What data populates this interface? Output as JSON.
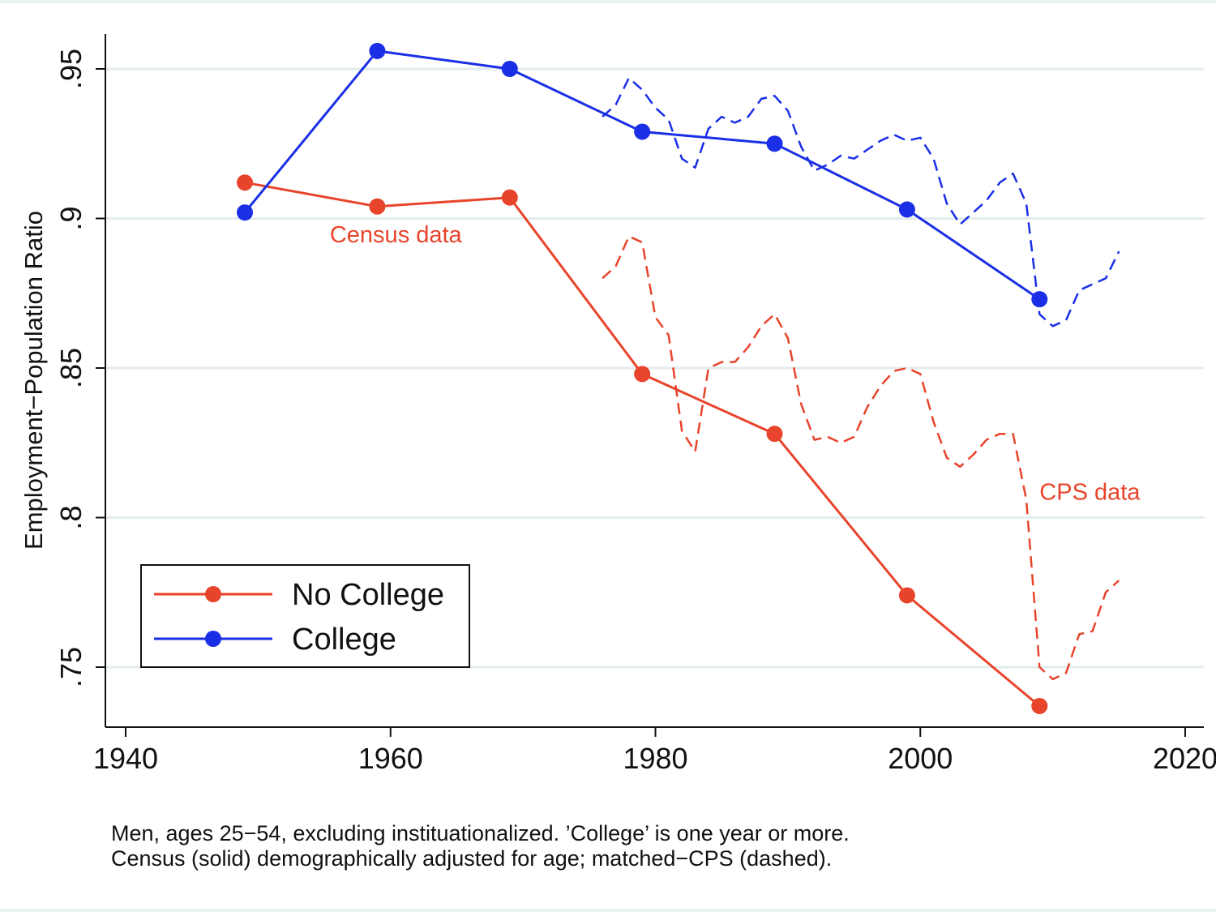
{
  "chart_data": {
    "type": "line",
    "ylabel": "Employment−Population Ratio",
    "xlim": [
      1940,
      2020
    ],
    "ylim": [
      0.73,
      0.963
    ],
    "xticks": [
      1940,
      1960,
      1980,
      2000,
      2020
    ],
    "xtick_labels": [
      "1940",
      "1960",
      "1980",
      "2000",
      "2020"
    ],
    "yticks": [
      0.75,
      0.8,
      0.85,
      0.9,
      0.95
    ],
    "ytick_labels": [
      ".75",
      ".8",
      ".85",
      ".9",
      ".95"
    ],
    "grid": true,
    "legend_position": "bottom-left",
    "legend": [
      "No College",
      "College"
    ],
    "series": [
      {
        "name": "No College",
        "style": "solid",
        "markers": true,
        "x": [
          1949,
          1959,
          1969,
          1979,
          1989,
          1999,
          2009
        ],
        "y": [
          0.912,
          0.904,
          0.907,
          0.848,
          0.828,
          0.774,
          0.737
        ]
      },
      {
        "name": "College",
        "style": "solid",
        "markers": true,
        "x": [
          1949,
          1959,
          1969,
          1979,
          1989,
          1999,
          2009
        ],
        "y": [
          0.902,
          0.956,
          0.95,
          0.929,
          0.925,
          0.903,
          0.873
        ]
      },
      {
        "name": "No College (CPS)",
        "style": "dashed",
        "markers": false,
        "x": [
          1976,
          1977,
          1978,
          1979,
          1980,
          1981,
          1982,
          1983,
          1984,
          1985,
          1986,
          1987,
          1988,
          1989,
          1990,
          1991,
          1992,
          1993,
          1994,
          1995,
          1996,
          1997,
          1998,
          1999,
          2000,
          2001,
          2002,
          2003,
          2004,
          2005,
          2006,
          2007,
          2008,
          2009,
          2010,
          2011,
          2012,
          2013,
          2014,
          2015
        ],
        "y": [
          0.88,
          0.884,
          0.894,
          0.892,
          0.867,
          0.861,
          0.829,
          0.822,
          0.85,
          0.852,
          0.852,
          0.857,
          0.864,
          0.868,
          0.86,
          0.838,
          0.826,
          0.827,
          0.825,
          0.827,
          0.837,
          0.844,
          0.849,
          0.85,
          0.848,
          0.832,
          0.82,
          0.817,
          0.821,
          0.826,
          0.828,
          0.828,
          0.806,
          0.75,
          0.746,
          0.748,
          0.761,
          0.762,
          0.775,
          0.779
        ]
      },
      {
        "name": "College (CPS)",
        "style": "dashed",
        "markers": false,
        "x": [
          1976,
          1977,
          1978,
          1979,
          1980,
          1981,
          1982,
          1983,
          1984,
          1985,
          1986,
          1987,
          1988,
          1989,
          1990,
          1991,
          1992,
          1993,
          1994,
          1995,
          1996,
          1997,
          1998,
          1999,
          2000,
          2001,
          2002,
          2003,
          2004,
          2005,
          2006,
          2007,
          2008,
          2009,
          2010,
          2011,
          2012,
          2013,
          2014,
          2015
        ],
        "y": [
          0.934,
          0.938,
          0.947,
          0.943,
          0.937,
          0.933,
          0.92,
          0.917,
          0.93,
          0.934,
          0.932,
          0.934,
          0.94,
          0.941,
          0.936,
          0.924,
          0.916,
          0.918,
          0.921,
          0.92,
          0.923,
          0.926,
          0.928,
          0.926,
          0.927,
          0.92,
          0.905,
          0.898,
          0.902,
          0.906,
          0.912,
          0.915,
          0.905,
          0.868,
          0.864,
          0.866,
          0.876,
          0.878,
          0.88,
          0.889
        ]
      }
    ],
    "annotations": [
      {
        "text": "Census data",
        "x": 1960.4,
        "y": 0.892
      },
      {
        "text": "CPS data",
        "x": 2012.8,
        "y": 0.806
      }
    ],
    "note_lines": [
      "Men, ages 25−54, excluding instituationalized. ’College’ is one year or more.",
      "Census (solid) demographically adjusted for age; matched−CPS (dashed)."
    ]
  },
  "colors": {
    "no_college": "#e8442b",
    "college": "#1a2fe6",
    "grid": "#e3ecee",
    "axis": "#111111"
  }
}
